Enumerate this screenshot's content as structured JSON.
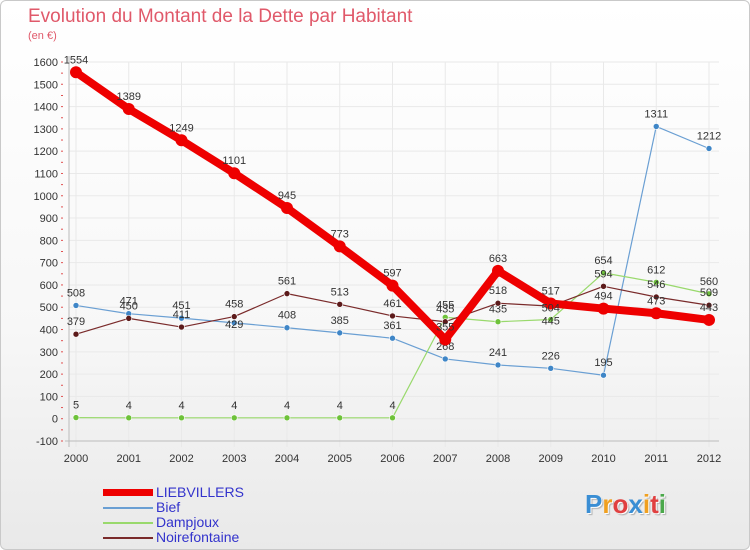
{
  "title": "Evolution du Montant de la Dette par Habitant",
  "unit_label": "(en €)",
  "colors": {
    "title": "#e0596a",
    "legend_text": "#3333cc",
    "tick_text": "#333333",
    "grid": "#e9e9e9"
  },
  "logo": {
    "letters": [
      "P",
      "r",
      "o",
      "x",
      "i",
      "t",
      "i"
    ],
    "colors": [
      "#3a8ed4",
      "#f0a020",
      "#e04040",
      "#3a8ed4",
      "#f0a020",
      "#e04040",
      "#4aa84a"
    ]
  },
  "chart_data": {
    "type": "line",
    "title": "Evolution du Montant de la Dette par Habitant",
    "ylabel": "(en €)",
    "xlabel": "",
    "x": [
      "2000",
      "2001",
      "2002",
      "2003",
      "2004",
      "2005",
      "2006",
      "2007",
      "2008",
      "2009",
      "2010",
      "2011",
      "2012"
    ],
    "ylim": [
      -100,
      1600
    ],
    "yticks": [
      -100,
      0,
      100,
      200,
      300,
      400,
      500,
      600,
      700,
      800,
      900,
      1000,
      1100,
      1200,
      1300,
      1400,
      1500,
      1600
    ],
    "grid": true,
    "legend_position": "bottom-left",
    "series": [
      {
        "name": "Bief",
        "color": "#6a9fd3",
        "marker_color": "#3f86c7",
        "line_width": 1.2,
        "values": [
          508,
          471,
          451,
          430,
          408,
          385,
          361,
          268,
          241,
          226,
          195,
          1311,
          1212
        ],
        "labels": [
          "508",
          "471",
          "451",
          "",
          "408",
          "385",
          "361",
          "268",
          "241",
          "226",
          "195",
          "1311",
          "1212"
        ]
      },
      {
        "name": "Dampjoux",
        "color": "#99d96c",
        "marker_color": "#6ec23a",
        "line_width": 1.2,
        "values": [
          5,
          4,
          4,
          4,
          4,
          4,
          4,
          455,
          435,
          445,
          654,
          612,
          560
        ],
        "labels": [
          "5",
          "4",
          "4",
          "4",
          "4",
          "4",
          "4",
          "455",
          "435",
          "",
          "654",
          "612",
          "560"
        ]
      },
      {
        "name": "Noirefontaine",
        "color": "#7a2b2b",
        "marker_color": "#5c1a1a",
        "line_width": 1.2,
        "values": [
          379,
          450,
          411,
          458,
          561,
          513,
          461,
          435,
          518,
          505,
          594,
          546,
          509
        ],
        "labels": [
          "379",
          "450",
          "411",
          "458",
          "561",
          "513",
          "461",
          "435",
          "518",
          "",
          "594",
          "546",
          "509"
        ]
      },
      {
        "name": "LIEBVILLERS",
        "color": "#ee0000",
        "marker_color": "#ee0000",
        "line_width": 8,
        "values": [
          1554,
          1389,
          1249,
          1101,
          945,
          773,
          597,
          355,
          663,
          517,
          494,
          473,
          443
        ],
        "labels": [
          "1554",
          "1389",
          "1249",
          "1101",
          "945",
          "773",
          "597",
          "355",
          "663",
          "517",
          "494",
          "473",
          "443"
        ]
      }
    ],
    "extra_labels": [
      "429",
      "504",
      "445"
    ]
  },
  "legend": {
    "items": [
      {
        "label": "LIEBVILLERS"
      },
      {
        "label": "Bief"
      },
      {
        "label": "Dampjoux"
      },
      {
        "label": "Noirefontaine"
      }
    ]
  }
}
